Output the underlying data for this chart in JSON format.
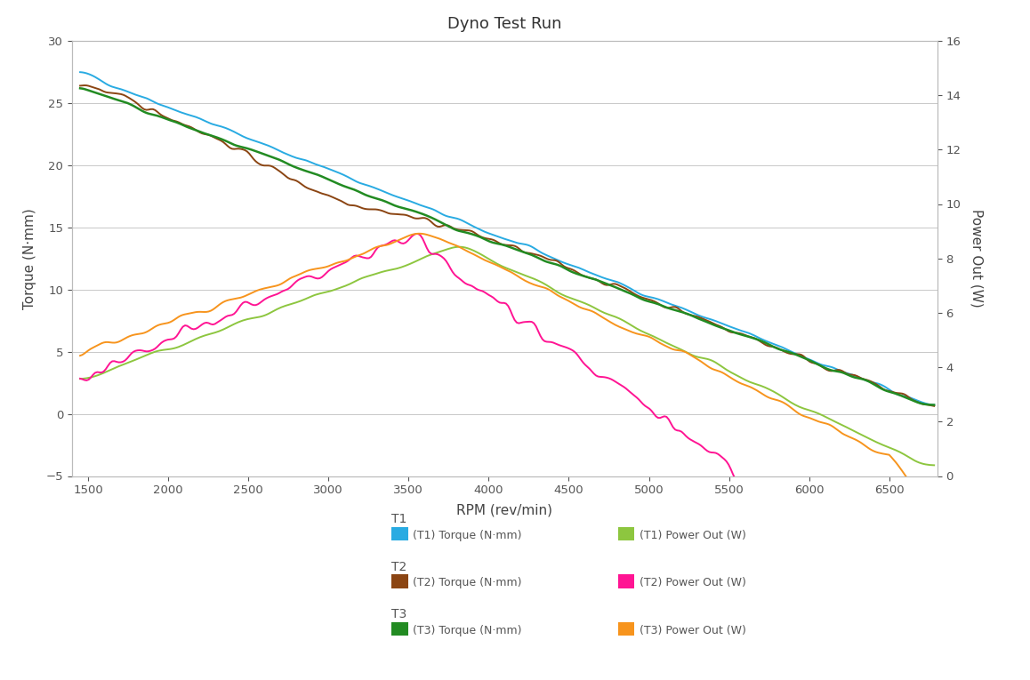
{
  "title": "Dyno Test Run",
  "xlabel": "RPM (rev/min)",
  "ylabel_left": "Torque (N·mm)",
  "ylabel_right": "Power Out (W)",
  "xlim": [
    1400,
    6800
  ],
  "ylim_left": [
    -5,
    30
  ],
  "ylim_right": [
    0,
    16
  ],
  "yticks_left": [
    -5,
    0,
    5,
    10,
    15,
    20,
    25,
    30
  ],
  "yticks_right": [
    0,
    2,
    4,
    6,
    8,
    10,
    12,
    14,
    16
  ],
  "xticks": [
    1500,
    2000,
    2500,
    3000,
    3500,
    4000,
    4500,
    5000,
    5500,
    6000,
    6500
  ],
  "colors": {
    "T1_torque": "#29ABE2",
    "T1_power": "#8DC63F",
    "T2_torque": "#8B4513",
    "T2_power": "#FF1493",
    "T3_torque": "#228B22",
    "T3_power": "#F7941D"
  },
  "background": "#FFFFFF",
  "grid_color": "#C8C8C8",
  "legend_groups": [
    {
      "label": "T1",
      "entries": [
        {
          "color": "#29ABE2",
          "text": "(T1) Torque (N·mm)"
        },
        {
          "color": "#8DC63F",
          "text": "(T1) Power Out (W)"
        }
      ]
    },
    {
      "label": "T2",
      "entries": [
        {
          "color": "#8B4513",
          "text": "(T2) Torque (N·mm)"
        },
        {
          "color": "#FF1493",
          "text": "(T2) Power Out (W)"
        }
      ]
    },
    {
      "label": "T3",
      "entries": [
        {
          "color": "#228B22",
          "text": "(T3) Torque (N·mm)"
        },
        {
          "color": "#F7941D",
          "text": "(T3) Power Out (W)"
        }
      ]
    }
  ]
}
